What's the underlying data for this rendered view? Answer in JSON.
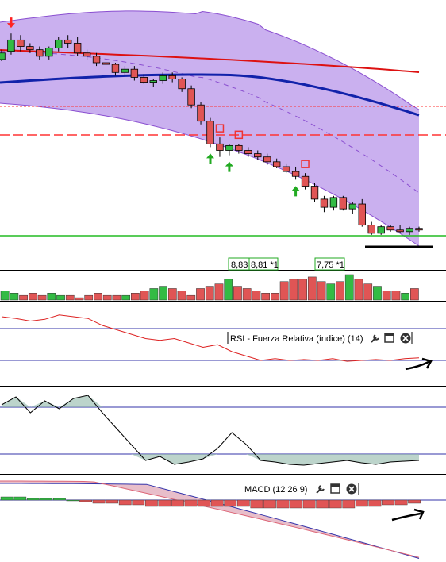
{
  "colors": {
    "up": "#33bb44",
    "down": "#e05555",
    "band_fill": "#b48ee8",
    "band_edge": "#8a4fd0",
    "ma_red": "#dd1111",
    "ma_blue": "#1122aa",
    "ref_red": "#ff3333",
    "support_green": "#22bb22",
    "rsi_line_up": "#22aa22",
    "rsi_line_down": "#dd2222",
    "osc_fill": "#8fb8a8",
    "macd_fill": "#e0a8b8",
    "panel_line": "#3333aa"
  },
  "price_labels": [
    "8,83",
    "8,81 *1",
    "7,75 *1"
  ],
  "rsi_panel": {
    "title": "RSI - Fuerza Relativa (índice) (14)"
  },
  "macd_panel": {
    "title": "MACD (12 26 9)"
  },
  "icons": [
    "wrench-icon",
    "window-icon",
    "close-icon"
  ],
  "chart_data": {
    "type": "candlestick",
    "panels": [
      "price",
      "volume",
      "rsi",
      "oscillator",
      "macd"
    ],
    "candles_ohlc": [
      [
        58,
        64,
        57,
        62
      ],
      [
        63,
        74,
        61,
        70
      ],
      [
        70,
        73,
        63,
        66
      ],
      [
        66,
        68,
        62,
        64
      ],
      [
        64,
        66,
        58,
        60
      ],
      [
        60,
        66,
        58,
        65
      ],
      [
        65,
        72,
        63,
        70
      ],
      [
        70,
        73,
        65,
        68
      ],
      [
        68,
        72,
        60,
        62
      ],
      [
        62,
        64,
        58,
        60
      ],
      [
        60,
        62,
        54,
        56
      ],
      [
        56,
        58,
        52,
        55
      ],
      [
        55,
        56,
        48,
        50
      ],
      [
        50,
        54,
        48,
        52
      ],
      [
        52,
        54,
        45,
        47
      ],
      [
        47,
        49,
        43,
        44
      ],
      [
        44,
        46,
        41,
        45
      ],
      [
        45,
        50,
        43,
        48
      ],
      [
        48,
        50,
        44,
        46
      ],
      [
        46,
        47,
        38,
        40
      ],
      [
        40,
        42,
        28,
        30
      ],
      [
        30,
        32,
        18,
        20
      ],
      [
        20,
        22,
        4,
        6
      ],
      [
        6,
        10,
        -2,
        2
      ],
      [
        2,
        6,
        -1,
        5
      ],
      [
        5,
        6,
        0,
        2
      ],
      [
        2,
        4,
        -2,
        0
      ],
      [
        0,
        2,
        -4,
        -2
      ],
      [
        -2,
        0,
        -7,
        -5
      ],
      [
        -5,
        -3,
        -9,
        -8
      ],
      [
        -8,
        -6,
        -12,
        -11
      ],
      [
        -11,
        -8,
        -16,
        -14
      ],
      [
        -14,
        -12,
        -22,
        -20
      ],
      [
        -20,
        -18,
        -30,
        -28
      ],
      [
        -28,
        -26,
        -36,
        -33
      ],
      [
        -33,
        -26,
        -35,
        -27
      ],
      [
        -27,
        -26,
        -35,
        -34
      ],
      [
        -34,
        -30,
        -37,
        -31
      ],
      [
        -31,
        -28,
        -45,
        -44
      ],
      [
        -44,
        -42,
        -50,
        -49
      ],
      [
        -49,
        -44,
        -50,
        -45
      ],
      [
        -45,
        -44,
        -48,
        -47
      ],
      [
        -47,
        -44,
        -49,
        -48
      ],
      [
        -48,
        -45,
        -50,
        -46
      ],
      [
        -46,
        -45,
        -48,
        -47
      ]
    ],
    "volume": [
      4,
      3,
      2,
      3,
      2,
      3,
      2,
      2,
      1,
      2,
      3,
      2,
      2,
      2,
      3,
      4,
      5,
      6,
      5,
      4,
      2,
      5,
      6,
      7,
      9,
      6,
      5,
      4,
      3,
      3,
      8,
      9,
      9,
      10,
      8,
      7,
      8,
      11,
      9,
      7,
      6,
      4,
      4,
      3,
      5
    ],
    "rsi": [
      60,
      58,
      55,
      57,
      62,
      60,
      58,
      50,
      45,
      40,
      35,
      33,
      35,
      30,
      25,
      28,
      20,
      15,
      10,
      12,
      10,
      11,
      10,
      12,
      9,
      10,
      11,
      10,
      12,
      13
    ],
    "oscillator": [
      80,
      90,
      70,
      85,
      75,
      88,
      92,
      70,
      50,
      30,
      10,
      15,
      5,
      8,
      12,
      25,
      45,
      30,
      10,
      8,
      5,
      4,
      6,
      8,
      10,
      7,
      5,
      8,
      9,
      10
    ],
    "macd_hist": [
      2,
      2,
      1,
      1,
      1,
      0,
      -1,
      -2,
      -2,
      -3,
      -3,
      -4,
      -4,
      -4,
      -4,
      -4,
      -4,
      -4,
      -4,
      -5,
      -5,
      -5,
      -5,
      -5,
      -5,
      -5,
      -5,
      -4,
      -4,
      -3,
      -3,
      -2
    ],
    "signal_markers": {
      "down_arrow": [
        1
      ],
      "up_arrow": [
        22,
        24,
        31
      ],
      "square": [
        23,
        25,
        32
      ]
    }
  }
}
